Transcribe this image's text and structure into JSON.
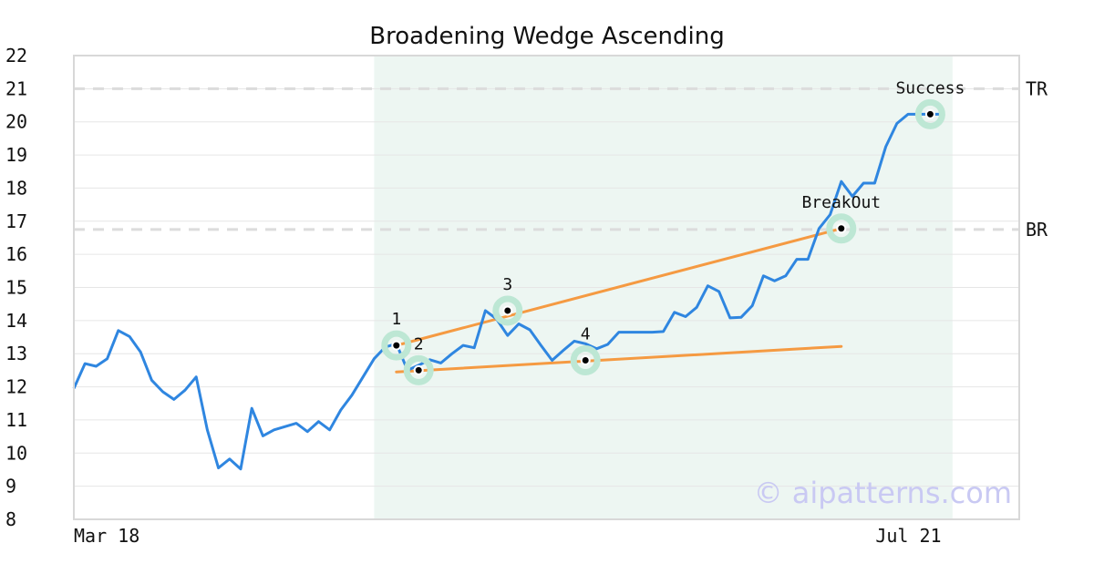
{
  "chart_data": {
    "type": "line",
    "title": "Broadening Wedge Ascending",
    "ylim": [
      8,
      22
    ],
    "yticks": [
      8,
      9,
      10,
      11,
      12,
      13,
      14,
      15,
      16,
      17,
      18,
      19,
      20,
      21,
      22
    ],
    "x_range": [
      0,
      78
    ],
    "x_tick_labels": [
      {
        "x": 0,
        "label": "Mar 18"
      },
      {
        "x": 78,
        "label": "Jul 21"
      }
    ],
    "grid": true,
    "series": [
      {
        "color": "#2f86e0",
        "x": [
          0,
          1,
          2,
          3,
          4,
          5,
          6,
          7,
          8,
          9,
          10,
          11,
          12,
          13,
          14,
          15,
          16,
          17,
          18,
          19,
          20,
          21,
          22,
          23,
          24,
          25,
          26,
          27,
          28,
          29,
          30,
          31,
          32,
          33,
          34,
          35,
          36,
          37,
          38,
          39,
          40,
          41,
          42,
          43,
          44,
          45,
          46,
          47,
          48,
          49,
          50,
          51,
          52,
          53,
          54,
          55,
          56,
          57,
          58,
          59,
          60,
          61,
          62,
          63,
          64,
          65,
          66,
          67,
          68,
          69,
          70,
          71,
          72,
          73,
          74,
          75,
          76,
          77,
          78
        ],
        "values": [
          11.95,
          12.7,
          12.62,
          12.85,
          13.7,
          13.52,
          13.05,
          12.2,
          11.85,
          11.62,
          11.9,
          12.3,
          10.7,
          9.55,
          9.82,
          9.52,
          11.35,
          10.52,
          10.7,
          10.8,
          10.9,
          10.65,
          10.95,
          10.7,
          11.3,
          11.75,
          12.3,
          12.85,
          13.2,
          13.3,
          12.5,
          12.65,
          12.82,
          12.72,
          13.0,
          13.25,
          13.18,
          14.3,
          14.05,
          13.55,
          13.9,
          13.72,
          13.25,
          12.8,
          13.1,
          13.38,
          13.3,
          13.15,
          13.28,
          13.65,
          13.65,
          13.65,
          13.65,
          13.67,
          14.25,
          14.12,
          14.4,
          15.05,
          14.88,
          14.08,
          14.1,
          14.45,
          15.35,
          15.2,
          15.35,
          15.85,
          15.85,
          16.78,
          17.2,
          18.2,
          17.75,
          18.15,
          18.15,
          19.25,
          19.95,
          20.23,
          20.23,
          20.23,
          20.23
        ]
      }
    ],
    "trend_lines": [
      {
        "color": "#f59a42",
        "from": {
          "x": 29,
          "y": 13.25
        },
        "to": {
          "x": 69,
          "y": 16.78
        }
      },
      {
        "color": "#f59a42",
        "from": {
          "x": 29,
          "y": 12.45
        },
        "to": {
          "x": 69,
          "y": 13.22
        }
      }
    ],
    "shaded_region": {
      "x_start": 27,
      "x_end": 79,
      "color": "#edf6f2"
    },
    "annotations": [
      {
        "label": "1",
        "x": 29,
        "y": 13.25
      },
      {
        "label": "2",
        "x": 31,
        "y": 12.5
      },
      {
        "label": "3",
        "x": 39,
        "y": 14.3
      },
      {
        "label": "4",
        "x": 46,
        "y": 12.8
      },
      {
        "label": "BreakOut",
        "x": 69,
        "y": 16.78
      },
      {
        "label": "Success",
        "x": 77,
        "y": 20.23
      }
    ],
    "levels": [
      {
        "label": "TR",
        "y": 21.0
      },
      {
        "label": "BR",
        "y": 16.75
      }
    ],
    "watermark": "© aipatterns.com"
  },
  "colors": {
    "line": "#2f86e0",
    "trend": "#f59a42",
    "marker_halo": "#bde7d4",
    "shade": "#edf6f2",
    "grid": "#e6e6e6",
    "level_line": "#dcdcdc"
  }
}
